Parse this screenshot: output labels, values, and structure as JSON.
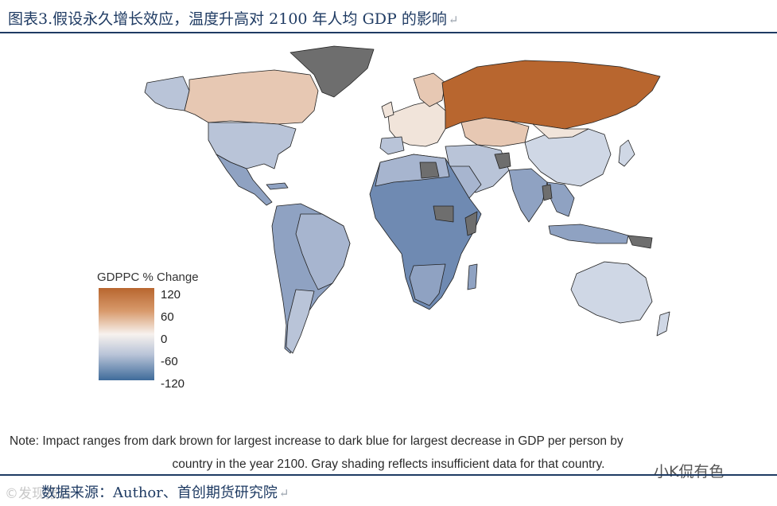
{
  "header": {
    "title": "图表3.假设永久增长效应，温度升高对 2100 年人均 GDP 的影响",
    "return_mark": "↵"
  },
  "legend": {
    "title": "GDPPC % Change",
    "ticks": [
      "120",
      "60",
      "0",
      "-60",
      "-120"
    ],
    "colors": {
      "max": "#b8662f",
      "mid_high": "#d89a6c",
      "zero": "#f7f2ee",
      "mid_low": "#b9c4d8",
      "min": "#3f6b9a"
    },
    "no_data_color": "#6e6e6e"
  },
  "note": {
    "line1": "Note: Impact ranges from dark brown for largest increase to dark blue for largest decrease in GDP per person by",
    "line2": "country in the year 2100. Gray shading reflects insufficient data for that country."
  },
  "footer": {
    "source": "数据来源：Author、首创期货研究院",
    "return_mark": "↵",
    "watermark_left": "©发现报告",
    "watermark_right": "小K侃有色"
  }
}
